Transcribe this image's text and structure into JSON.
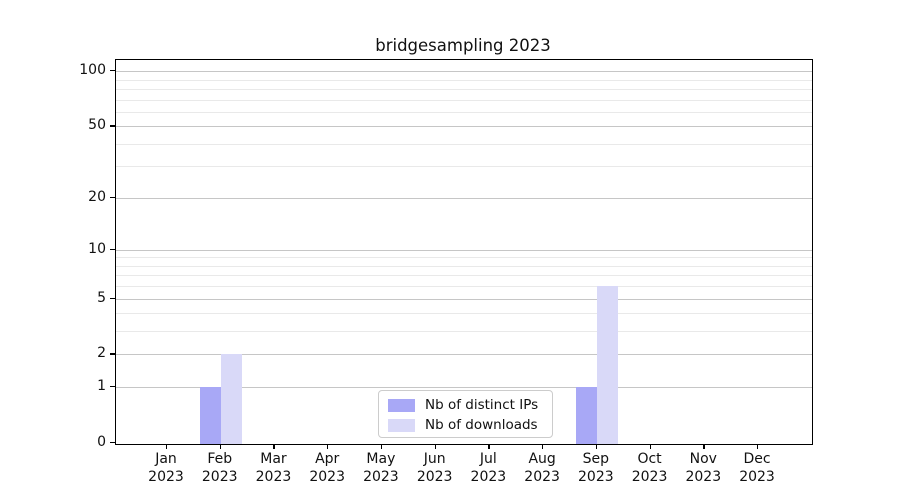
{
  "chart_data": {
    "type": "bar",
    "title": "bridgesampling 2023",
    "categories": [
      "Jan",
      "Feb",
      "Mar",
      "Apr",
      "May",
      "Jun",
      "Jul",
      "Aug",
      "Sep",
      "Oct",
      "Nov",
      "Dec"
    ],
    "year_label": "2023",
    "series": [
      {
        "name": "Nb of distinct IPs",
        "color": "#a8a8f6",
        "values": [
          0,
          1,
          0,
          0,
          0,
          0,
          0,
          0,
          1,
          0,
          0,
          0
        ]
      },
      {
        "name": "Nb of downloads",
        "color": "#d9d9f8",
        "values": [
          0,
          2,
          0,
          0,
          0,
          0,
          0,
          0,
          6,
          0,
          0,
          0
        ]
      }
    ],
    "y_scale": "log1p",
    "y_ticks": [
      0,
      1,
      2,
      5,
      10,
      20,
      50,
      100
    ],
    "y_minor_ticks": [
      3,
      4,
      6,
      7,
      8,
      9,
      30,
      40,
      60,
      70,
      80,
      90
    ],
    "ylim": [
      0,
      115
    ],
    "grid": true,
    "legend_position": "lower center",
    "grid_major_color": "#c6c6c6",
    "grid_minor_color": "#e9e9e9",
    "axis_color": "#000000",
    "text_color": "#111111"
  }
}
